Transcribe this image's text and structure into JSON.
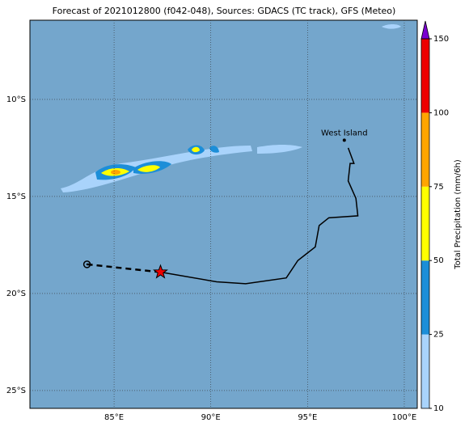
{
  "title": "Forecast of 2021012800 (f042-048), Sources: GDACS (TC track), GFS (Meteo)",
  "map": {
    "xlim": [
      80.65,
      100.67
    ],
    "ylim": [
      -25.92,
      -5.92
    ],
    "xticks": [
      {
        "value": 85,
        "label": "85°E"
      },
      {
        "value": 90,
        "label": "90°E"
      },
      {
        "value": 95,
        "label": "95°E"
      },
      {
        "value": 100,
        "label": "100°E"
      }
    ],
    "yticks": [
      {
        "value": -10,
        "label": "10°S"
      },
      {
        "value": -15,
        "label": "15°S"
      },
      {
        "value": -20,
        "label": "20°S"
      },
      {
        "value": -25,
        "label": "25°S"
      }
    ],
    "places": [
      {
        "name": "West Island",
        "lon": 96.9,
        "lat": -12.1
      }
    ],
    "forecast_track": {
      "lon": [
        83.6,
        87.4
      ],
      "lat": [
        -18.5,
        -18.9
      ]
    },
    "track": {
      "lon": [
        87.4,
        90.3,
        91.8,
        93.9,
        94.5,
        95.4,
        95.6,
        96.1,
        97.6,
        97.5,
        97.1,
        97.2,
        97.4,
        97.1
      ],
      "lat": [
        -18.9,
        -19.4,
        -19.5,
        -19.2,
        -18.3,
        -17.6,
        -16.5,
        -16.1,
        -16.0,
        -15.1,
        -14.2,
        -13.3,
        -13.3,
        -12.5
      ]
    }
  },
  "colorbar": {
    "label": "Total Precipitation (mm/6h)",
    "levels": [
      10,
      25,
      50,
      75,
      100,
      150
    ],
    "colors": [
      "#a9d3fb",
      "#1c8ed8",
      "#ffff00",
      "#ffa500",
      "#ee0000"
    ],
    "extend_color": "#7a00d0"
  }
}
